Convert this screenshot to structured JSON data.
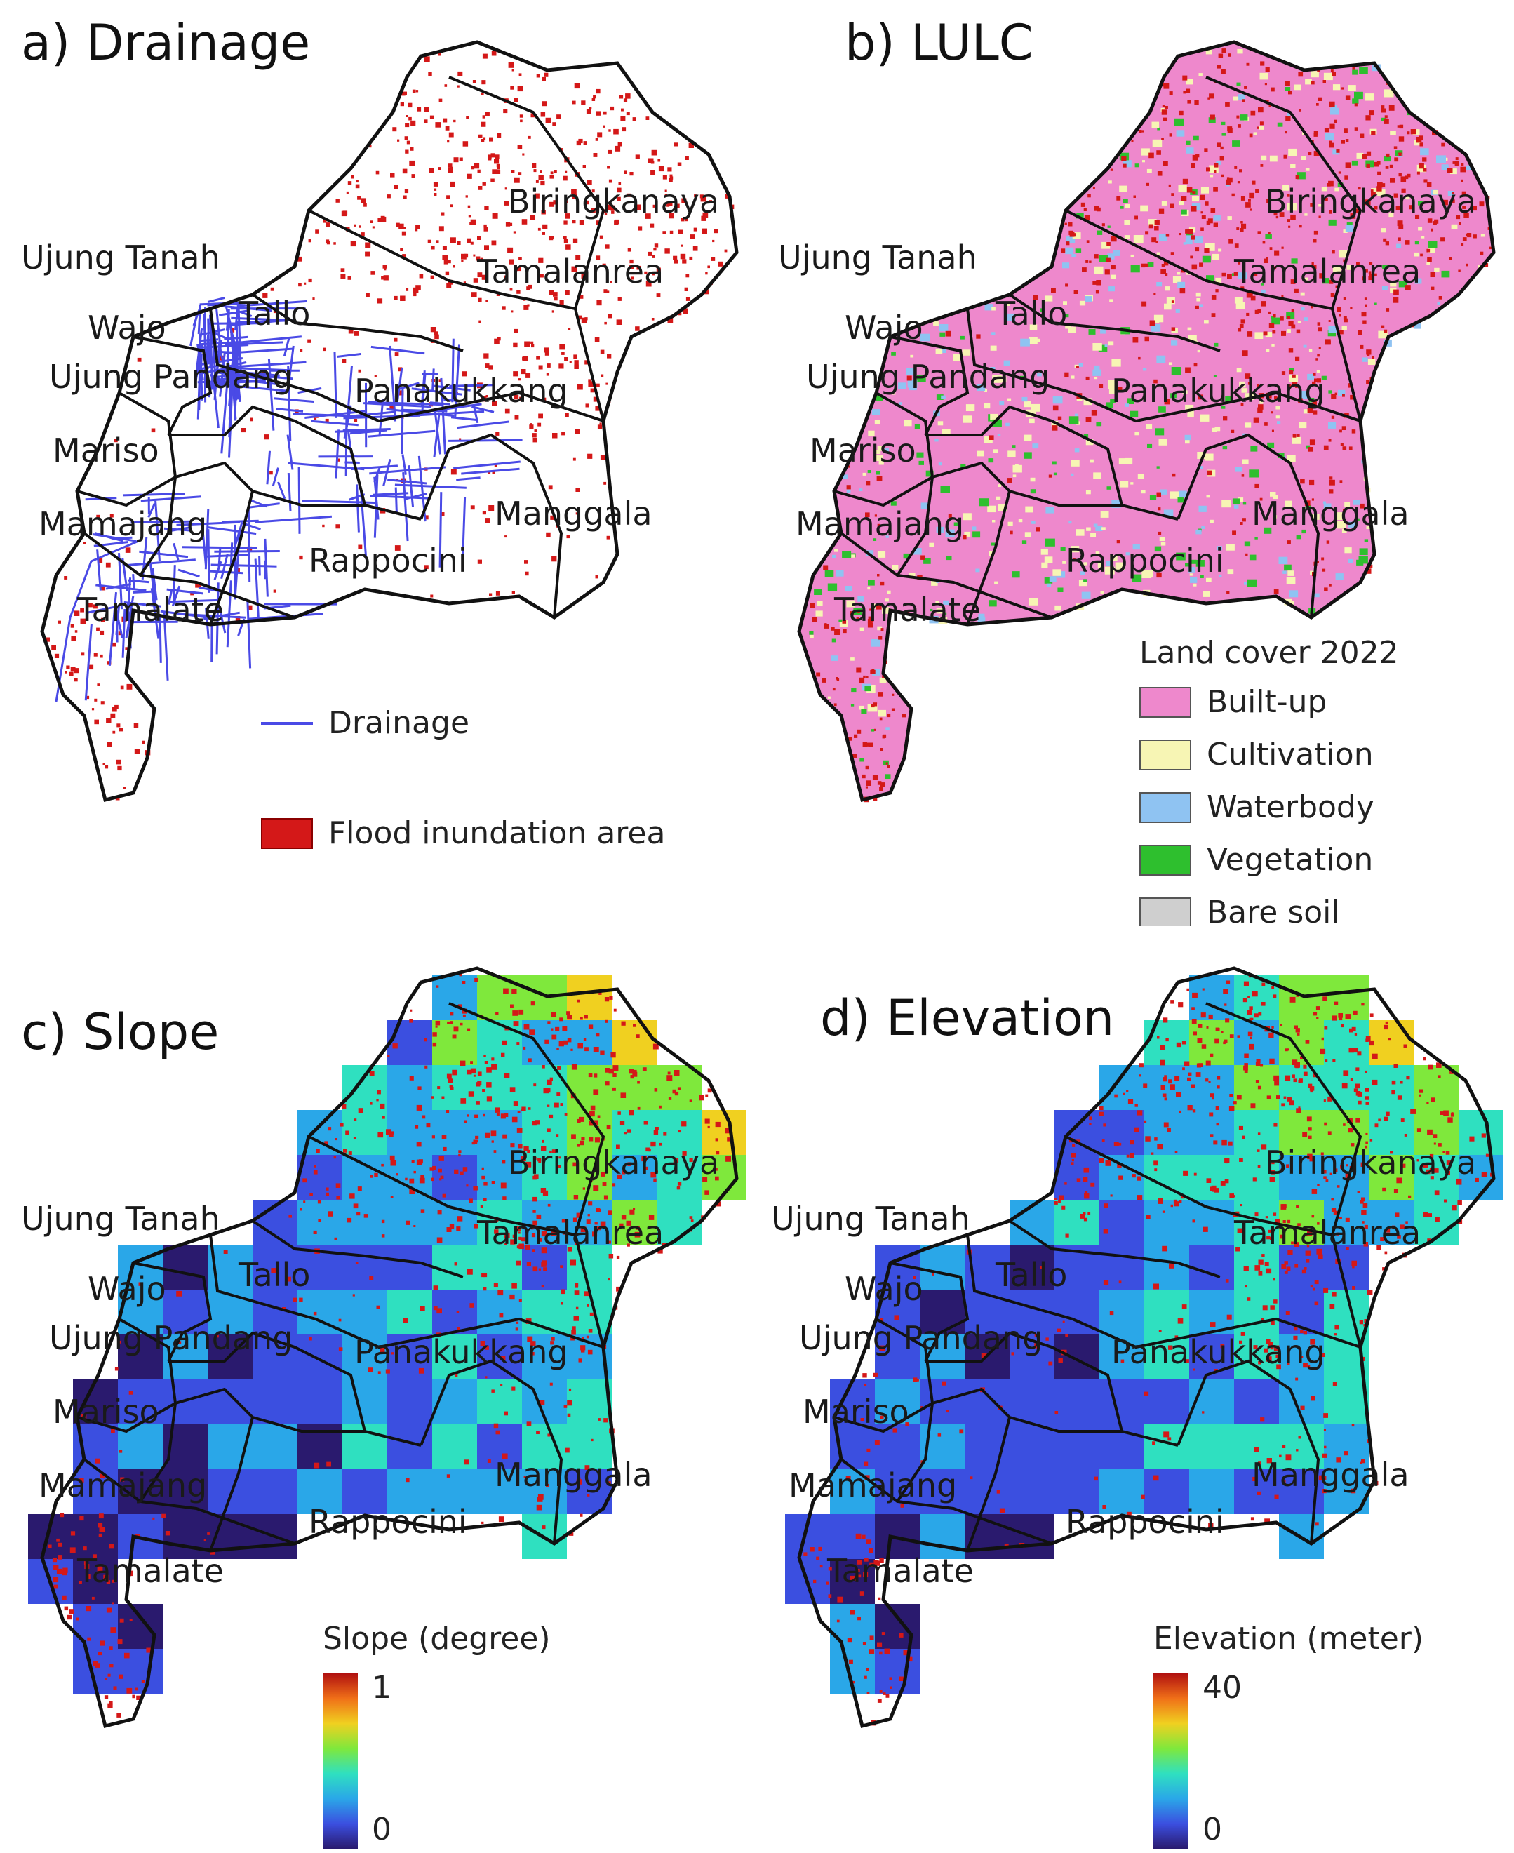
{
  "panels": {
    "a": {
      "title": "a) Drainage"
    },
    "b": {
      "title": "b) LULC"
    },
    "c": {
      "title": "c) Slope"
    },
    "d": {
      "title": "d) Elevation"
    }
  },
  "places": {
    "biringkanaya": "Biringkanaya",
    "tamalanrea": "Tamalanrea",
    "ujung_tanah": "Ujung Tanah",
    "wajo": "Wajo",
    "tallo": "Tallo",
    "ujung_pandang": "Ujung Pandang",
    "panakukkang": "Panakukkang",
    "mariso": "Mariso",
    "mamajang": "Mamajang",
    "manggala": "Manggala",
    "rappocini": "Rappocini",
    "tamalate": "Tamalate"
  },
  "legend_a": {
    "drainage": {
      "label": "Drainage",
      "color": "#4a4ae6"
    },
    "flood": {
      "label": "Flood inundation area",
      "color": "#d41818"
    }
  },
  "legend_b": {
    "title": "Land cover 2022",
    "items": [
      {
        "label": "Built-up",
        "color": "#ee88cc"
      },
      {
        "label": "Cultivation",
        "color": "#f7f5b4"
      },
      {
        "label": "Waterbody",
        "color": "#8fc3f2"
      },
      {
        "label": "Vegetation",
        "color": "#2ebf2e"
      },
      {
        "label": "Bare soil",
        "color": "#cfcfcf"
      }
    ]
  },
  "legend_c": {
    "title": "Slope (degree)",
    "max": "1",
    "min": "0"
  },
  "legend_d": {
    "title": "Elevation (meter)",
    "max": "40",
    "min": "0"
  },
  "colors": {
    "boundary": "#111111",
    "flood": "#d41818",
    "drainage": "#4a4ae6",
    "ramp": [
      "#2a1a6e",
      "#3b4fe0",
      "#2aa7e8",
      "#2fe0c0",
      "#7fe83c",
      "#f0d020",
      "#f07018",
      "#b01010"
    ]
  }
}
